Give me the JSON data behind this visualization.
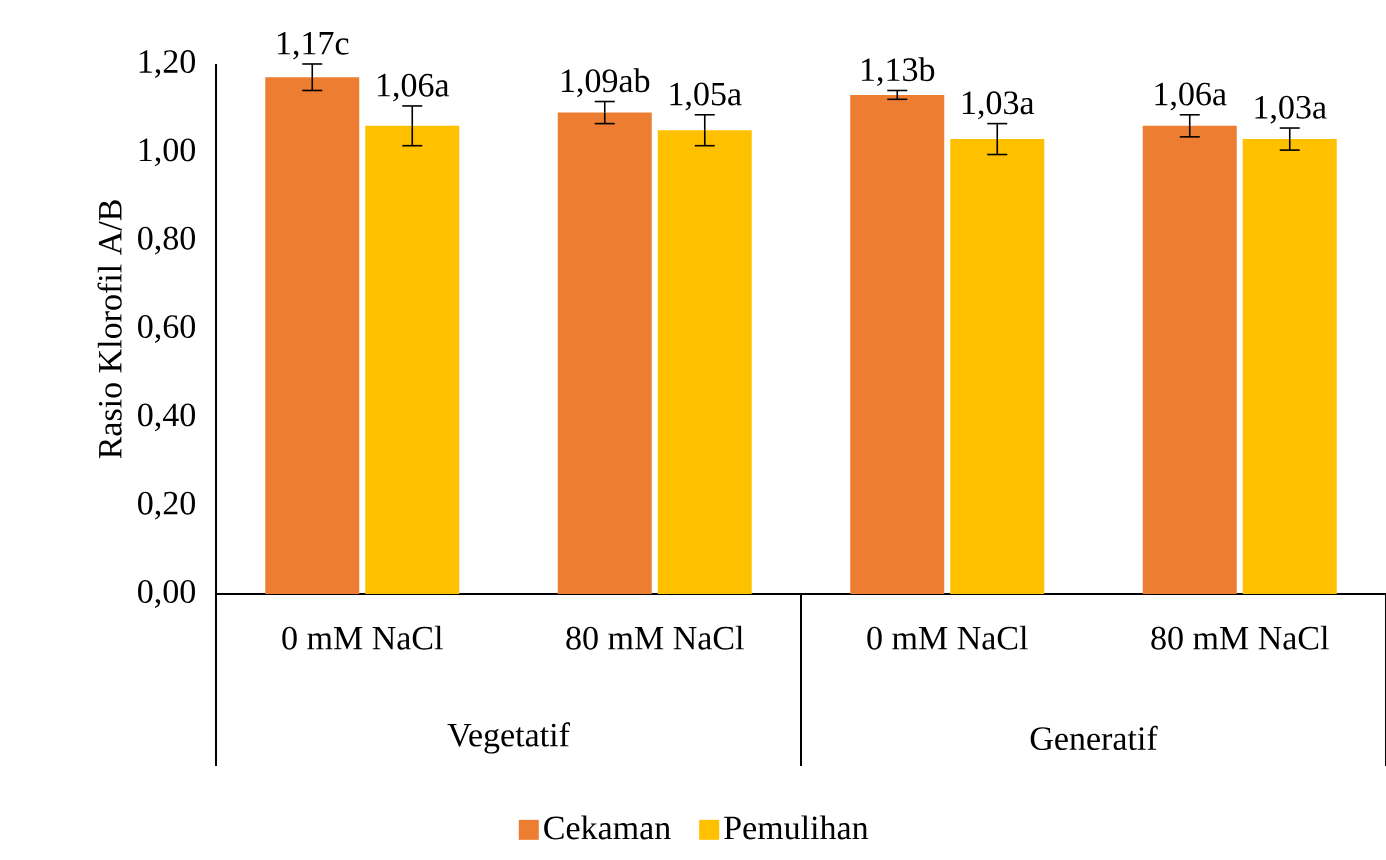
{
  "chart_data": {
    "type": "bar",
    "ylabel": "Rasio Klorofil A/B",
    "categories": [
      "0 mM NaCl",
      "80 mM NaCl",
      "0 mM NaCl",
      "80 mM NaCl"
    ],
    "annotations": [
      "Vegetatif",
      "Generatif"
    ],
    "series": [
      {
        "name": "Cekaman",
        "color": "#ed7d31",
        "values": [
          1.17,
          1.09,
          1.13,
          1.06
        ],
        "errors": [
          0.03,
          0.025,
          0.01,
          0.025
        ],
        "value_labels": [
          "1,17c",
          "1,09ab",
          "1,13b",
          "1,06a"
        ]
      },
      {
        "name": "Pemulihan",
        "color": "#ffc000",
        "values": [
          1.06,
          1.05,
          1.03,
          1.03
        ],
        "errors": [
          0.045,
          0.035,
          0.035,
          0.025
        ],
        "value_labels": [
          "1,06a",
          "1,05a",
          "1,03a",
          "1,03a"
        ]
      }
    ],
    "ylim": [
      0,
      1.2
    ],
    "yticks": [
      {
        "value": 0,
        "label": "0,00"
      },
      {
        "value": 0.2,
        "label": "0,20"
      },
      {
        "value": 0.4,
        "label": "0,40"
      },
      {
        "value": 0.6,
        "label": "0,60"
      },
      {
        "value": 0.8,
        "label": "0,80"
      },
      {
        "value": 1.0,
        "label": "1,00"
      },
      {
        "value": 1.2,
        "label": "1,20"
      }
    ],
    "legend": "bottom"
  }
}
